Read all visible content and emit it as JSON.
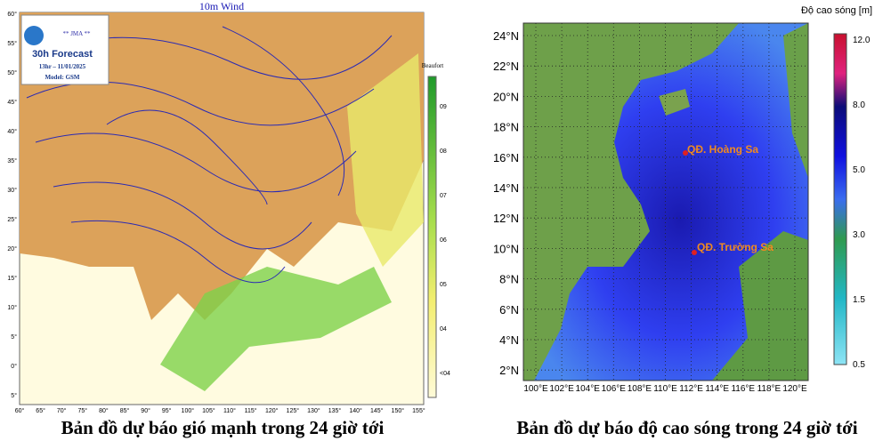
{
  "left_map": {
    "title": "10m Wind",
    "logo": {
      "agency": "** JMA **",
      "forecast": "30h Forecast",
      "time": "13hr – 11/01/2025",
      "model": "Model: GSM"
    },
    "legend": {
      "title": "Beaufort",
      "labels": [
        "09",
        "08",
        "07",
        "06",
        "05",
        "04",
        "<04"
      ]
    },
    "lat_labels": [
      "60°",
      "55°",
      "50°",
      "45°",
      "40°",
      "35°",
      "30°",
      "25°",
      "20°",
      "15°",
      "10°",
      "5°",
      "0°",
      "5°"
    ],
    "lon_labels": [
      "60°",
      "65°",
      "70°",
      "75°",
      "80°",
      "85°",
      "90°",
      "95°",
      "100°",
      "105°",
      "110°",
      "115°",
      "120°",
      "125°",
      "130°",
      "135°",
      "140°",
      "145°",
      "150°",
      "155°"
    ],
    "caption": "Bản đồ dự báo gió mạnh trong 24 giờ tới"
  },
  "right_map": {
    "legend": {
      "title": "Độ cao sóng [m]",
      "labels": [
        "12.0",
        "8.0",
        "5.0",
        "3.0",
        "1.5",
        "0.5"
      ]
    },
    "places": [
      "QĐ. Hoàng Sa",
      "QĐ. Trường Sa"
    ],
    "lat_labels": [
      "24°N",
      "22°N",
      "20°N",
      "18°N",
      "16°N",
      "14°N",
      "12°N",
      "10°N",
      "8°N",
      "6°N",
      "4°N",
      "2°N"
    ],
    "lon_labels": [
      "100°E",
      "102°E",
      "104°E",
      "106°E",
      "108°E",
      "110°E",
      "112°E",
      "114°E",
      "116°E",
      "118°E",
      "120°E"
    ],
    "caption": "Bản đồ dự báo độ cao sóng trong 24 giờ tới"
  }
}
